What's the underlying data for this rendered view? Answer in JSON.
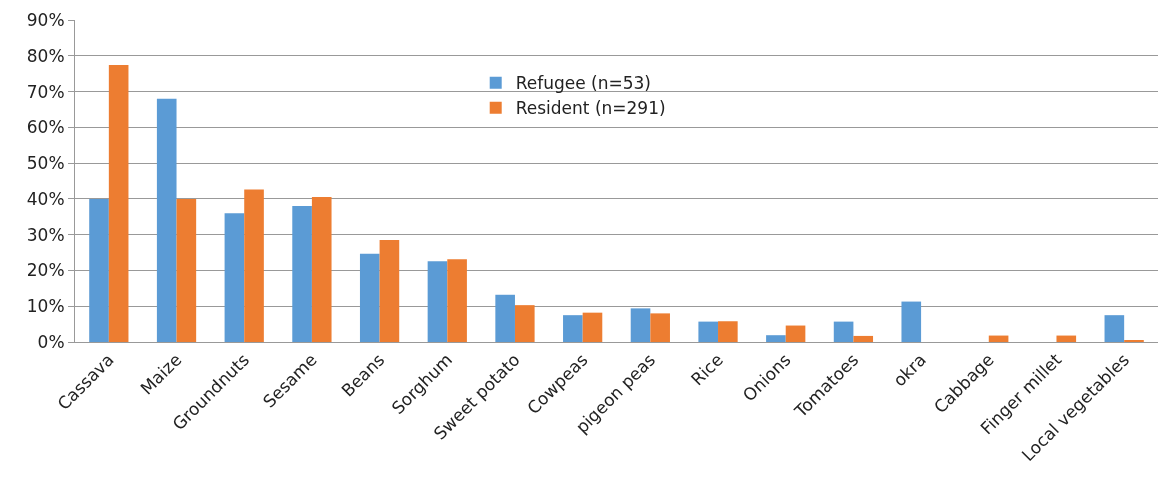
{
  "chart_data": {
    "type": "bar",
    "categories": [
      "Cassava",
      "Maize",
      "Groundnuts",
      "Sesame",
      "Beans",
      "Sorghum",
      "Sweet potato",
      "Cowpeas",
      "pigeon peas",
      "Rice",
      "Onions",
      "Tomatoes",
      "okra",
      "Cabbage",
      "Finger millet",
      "Local vegetables"
    ],
    "series": [
      {
        "name": "Refugee (n=53)",
        "color": "#5b9bd5",
        "values": [
          40,
          68,
          36,
          38,
          24.7,
          22.6,
          13.2,
          7.5,
          9.4,
          5.7,
          1.9,
          5.7,
          11.3,
          0,
          0,
          7.5
        ]
      },
      {
        "name": "Resident (n=291)",
        "color": "#ed7d31",
        "values": [
          77.4,
          40,
          42.6,
          40.5,
          28.5,
          23.1,
          10.3,
          8.2,
          8.0,
          5.8,
          4.6,
          1.7,
          0,
          1.8,
          1.8,
          0.5
        ]
      }
    ],
    "ylim": [
      0,
      90
    ],
    "yticks": [
      {
        "value": 0,
        "label": "0%"
      },
      {
        "value": 10,
        "label": "10%"
      },
      {
        "value": 20,
        "label": "20%"
      },
      {
        "value": 30,
        "label": "30%"
      },
      {
        "value": 40,
        "label": "40%"
      },
      {
        "value": 50,
        "label": "50%"
      },
      {
        "value": 60,
        "label": "60%"
      },
      {
        "value": 70,
        "label": "70%"
      },
      {
        "value": 80,
        "label": "80%"
      },
      {
        "value": 90,
        "label": "90%"
      }
    ],
    "grid": "y",
    "legend": "top"
  }
}
